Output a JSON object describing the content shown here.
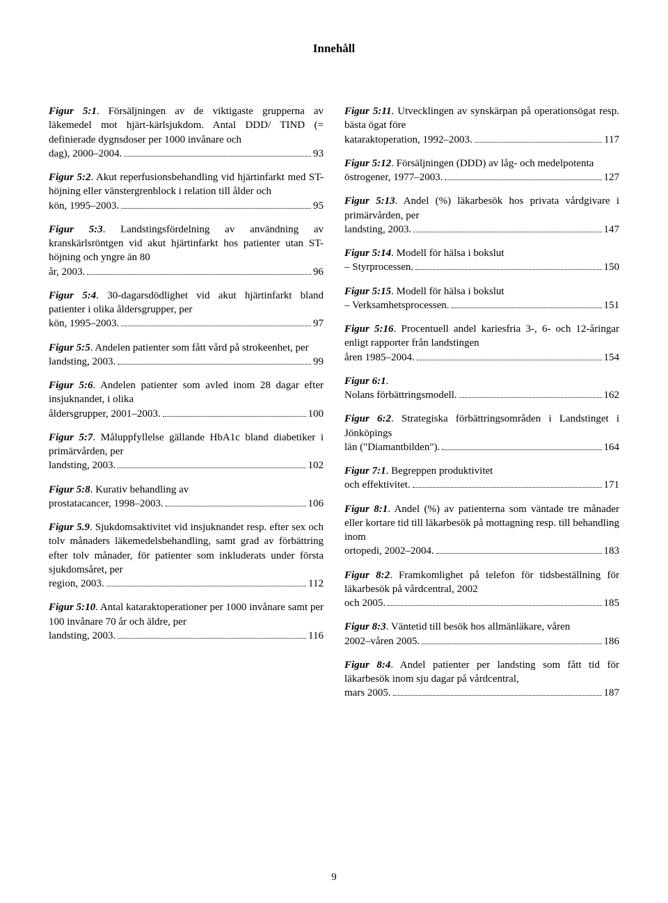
{
  "header": "Innehåll",
  "pageNumber": "9",
  "left": [
    {
      "label": "Figur 5:1",
      "text": ". Försäljningen av de viktigaste grupperna av läkemedel mot hjärt-kärlsjukdom. Antal DDD/ TIND (= definierade dygnsdoser per 1000 invånare och dag), 2000–2004.",
      "page": "93"
    },
    {
      "label": "Figur 5:2",
      "text": ". Akut reperfusionsbehandling vid hjärtinfarkt med ST-höjning eller vänstergrenblock i relation till ålder och kön, 1995–2003.",
      "page": "95"
    },
    {
      "label": "Figur 5:3",
      "text": ". Landstingsfördelning av användning av kranskärlsröntgen vid akut hjärtinfarkt hos patienter utan ST-höjning och yngre än 80 år, 2003.",
      "page": "96"
    },
    {
      "label": "Figur 5:4",
      "text": ". 30-dagarsdödlighet vid akut hjärtinfarkt bland patienter i olika åldersgrupper, per kön, 1995–2003.",
      "page": "97"
    },
    {
      "label": "Figur 5:5",
      "text": ". Andelen patienter som fått vård på strokeenhet, per landsting, 2003.",
      "page": "99"
    },
    {
      "label": "Figur 5:6",
      "text": ". Andelen patienter som avled inom 28 dagar efter insjuknandet, i olika åldersgrupper, 2001–2003.",
      "page": "100"
    },
    {
      "label": "Figur 5:7",
      "text": ". Måluppfyllelse gällande HbA1c bland diabetiker i primärvården, per landsting, 2003.",
      "page": "102"
    },
    {
      "label": "Figur 5:8",
      "text": ". Kurativ behandling av prostatacancer, 1998–2003.",
      "page": "106"
    },
    {
      "label": "Figur 5.9",
      "text": ". Sjukdomsaktivitet vid insjuknandet resp. efter sex och tolv månaders läkemedelsbehandling, samt grad av förbättring efter tolv månader, för patienter som inkluderats under första sjukdomsåret, per region, 2003.",
      "page": "112"
    },
    {
      "label": "Figur 5:10",
      "text": ". Antal kataraktoperationer per 1000 invånare samt per 100 invånare 70 år och äldre, per landsting, 2003.",
      "page": "116"
    }
  ],
  "right": [
    {
      "label": "Figur 5:11",
      "text": ". Utvecklingen av synskärpan på operationsögat resp. bästa ögat före kataraktoperation, 1992–2003.",
      "page": "117"
    },
    {
      "label": "Figur 5:12",
      "text": ". Försäljningen (DDD) av låg- och medelpotenta östrogener, 1977–2003.",
      "page": "127"
    },
    {
      "label": "Figur 5:13",
      "text": ". Andel (%) läkarbesök hos privata vårdgivare i primärvården, per landsting, 2003.",
      "page": "147"
    },
    {
      "label": "Figur 5:14",
      "text": ". Modell för hälsa i bokslut – Styrprocessen.",
      "page": "150"
    },
    {
      "label": "Figur 5:15",
      "text": ". Modell för hälsa i bokslut – Verksamhetsprocessen.",
      "page": "151"
    },
    {
      "label": "Figur 5:16",
      "text": ". Procentuell andel kariesfria 3-, 6- och 12-åringar enligt rapporter från landstingen åren 1985–2004.",
      "page": "154"
    },
    {
      "label": "Figur 6:1",
      "text": ". Nolans förbättringsmodell.",
      "page": "162"
    },
    {
      "label": "Figur 6:2",
      "text": ". Strategiska förbättringsområden i Landstinget i Jönköpings län (\"Diamantbilden\").",
      "page": "164"
    },
    {
      "label": "Figur 7:1",
      "text": ". Begreppen produktivitet och effektivitet.",
      "page": "171"
    },
    {
      "label": "Figur 8:1",
      "text": ". Andel (%) av patienterna som väntade tre månader eller kortare tid till läkarbesök på mottagning resp. till behandling inom ortopedi, 2002–2004.",
      "page": "183"
    },
    {
      "label": "Figur 8:2",
      "text": ". Framkomlighet på telefon för tidsbeställning för läkarbesök på vårdcentral, 2002 och 2005.",
      "page": "185"
    },
    {
      "label": "Figur 8:3",
      "text": ". Väntetid till besök hos allmänläkare, våren 2002–våren 2005.",
      "page": "186"
    },
    {
      "label": "Figur 8:4",
      "text": ". Andel patienter per landsting som fått tid för läkarbesök inom sju dagar på vårdcentral, mars 2005.",
      "page": "187"
    }
  ]
}
